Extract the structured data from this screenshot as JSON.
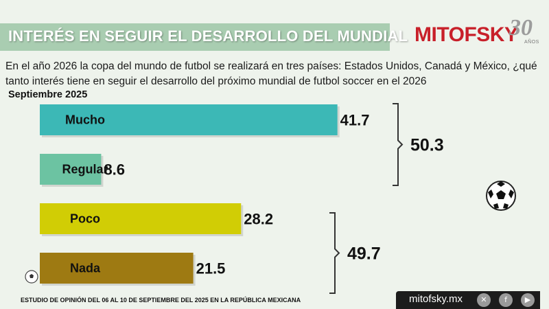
{
  "header": {
    "title": "INTERÉS EN SEGUIR EL DESARROLLO DEL MUNDIAL",
    "logo_text": "MITOFSKY",
    "logo_number": "30",
    "logo_sub": "AÑOS"
  },
  "question": "En el año 2026 la copa del mundo de futbol se realizará en tres países:  Estados Unidos, Canadá y México, ¿qué tanto interés tiene en seguir el desarrollo del próximo mundial de futbol soccer en el 2026",
  "date_label": "Septiembre 2025",
  "chart_data": {
    "type": "bar",
    "orientation": "horizontal",
    "categories": [
      "Mucho",
      "Regular",
      "Poco",
      "Nada"
    ],
    "values": [
      41.7,
      8.6,
      28.2,
      21.5
    ],
    "colors": [
      "#3cb8b6",
      "#6cc3a2",
      "#d1cd05",
      "#9e7a12"
    ],
    "groups": [
      {
        "members": [
          "Mucho",
          "Regular"
        ],
        "total": "50.3"
      },
      {
        "members": [
          "Poco",
          "Nada"
        ],
        "total": "49.7"
      }
    ],
    "value_labels": [
      "41.7",
      "8.6",
      "28.2",
      "21.5"
    ]
  },
  "footer": {
    "note": "ESTUDIO DE OPINIÓN DEL 06 AL 10 DE SEPTIEMBRE DEL 2025 EN LA REPÚBLICA MEXICANA",
    "url": "mitofsky.mx",
    "icons": [
      "x-icon",
      "facebook-icon",
      "youtube-icon"
    ]
  }
}
